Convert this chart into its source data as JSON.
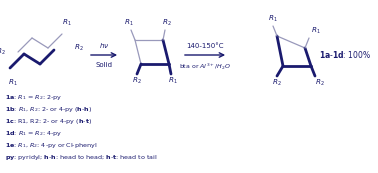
{
  "bg_color": "#ffffff",
  "dark_color": "#1a1a6e",
  "gray_color": "#9999bb",
  "text_color": "#1a1a6e",
  "figsize": [
    3.78,
    1.73
  ],
  "dpi": 100,
  "lw_thick": 2.0,
  "lw_thin": 0.9,
  "fs_label": 5.2,
  "fs_arrow": 5.0,
  "fs_result": 5.5,
  "fs_legend": 4.6
}
